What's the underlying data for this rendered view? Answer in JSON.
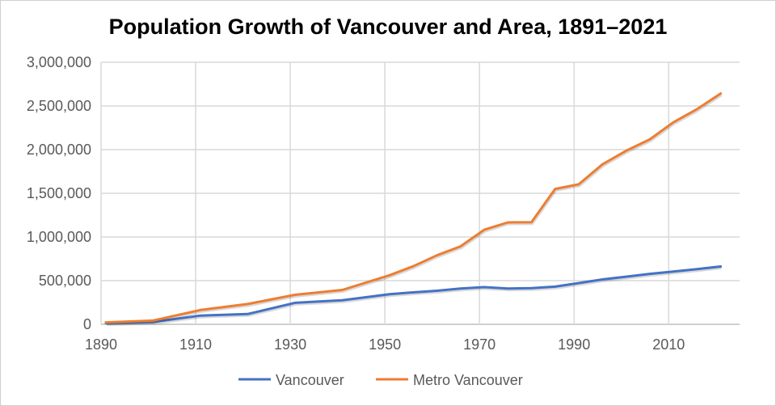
{
  "chart_data": {
    "type": "line",
    "title": "Population Growth of Vancouver and Area, 1891–2021",
    "xlabel": "",
    "ylabel": "",
    "xlim": [
      1890,
      2025
    ],
    "ylim": [
      0,
      3000000
    ],
    "x_ticks": [
      "1890",
      "1910",
      "1930",
      "1950",
      "1970",
      "1990",
      "2010"
    ],
    "y_ticks": [
      "0",
      "500,000",
      "1,000,000",
      "1,500,000",
      "2,000,000",
      "2,500,000",
      "3,000,000"
    ],
    "grid": true,
    "legend_position": "bottom",
    "x": [
      1891,
      1901,
      1911,
      1921,
      1931,
      1941,
      1951,
      1956,
      1961,
      1966,
      1971,
      1976,
      1981,
      1986,
      1991,
      1996,
      2001,
      2006,
      2011,
      2016,
      2021
    ],
    "series": [
      {
        "name": "Vancouver",
        "color": "#4472C4",
        "values": [
          13709,
          27010,
          100401,
          117217,
          246593,
          275353,
          344833,
          365844,
          384522,
          410375,
          426256,
          410188,
          414281,
          431147,
          471844,
          514008,
          545671,
          578041,
          603502,
          631486,
          662248
        ]
      },
      {
        "name": "Metro Vancouver",
        "color": "#ED7D31",
        "values": [
          21887,
          42926,
          164020,
          232597,
          338241,
          393898,
          562462,
          665017,
          790165,
          892286,
          1082352,
          1166348,
          1169831,
          1550000,
          1602502,
          1831665,
          1986965,
          2116581,
          2313328,
          2463431,
          2642825
        ]
      }
    ]
  }
}
